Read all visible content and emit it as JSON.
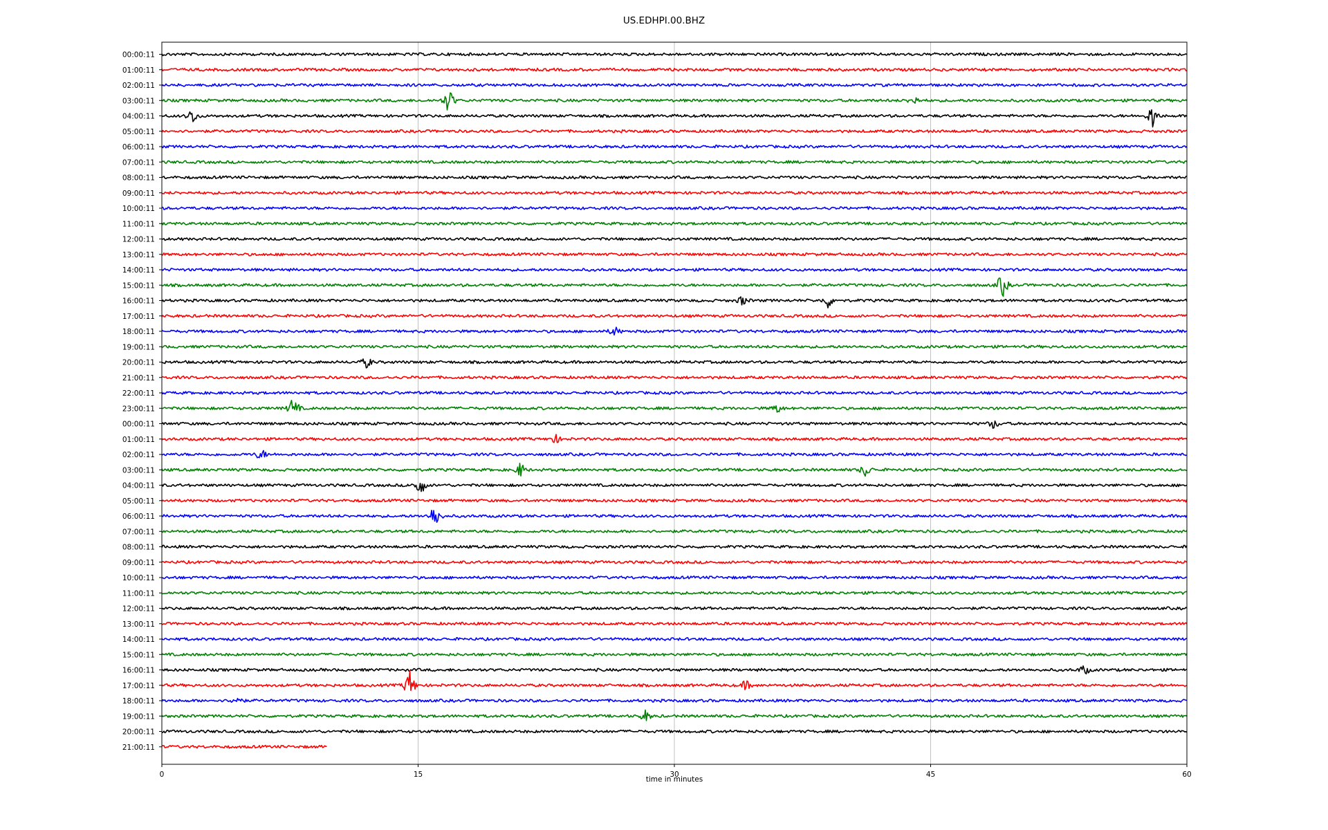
{
  "chart_data": {
    "type": "line",
    "title": "US.EDHPI.00.BHZ",
    "xlabel": "time in minutes",
    "ylabel": "",
    "xlim": [
      0,
      60
    ],
    "xticks": [
      "0",
      "15",
      "30",
      "45",
      "60"
    ],
    "grid": "vertical",
    "trace_colors": [
      "#000000",
      "#ff0000",
      "#0000ff",
      "#008000"
    ],
    "rows": [
      {
        "label": "00:00:11",
        "end_minute": 60
      },
      {
        "label": "01:00:11",
        "end_minute": 60
      },
      {
        "label": "02:00:11",
        "end_minute": 60
      },
      {
        "label": "03:00:11",
        "end_minute": 60
      },
      {
        "label": "04:00:11",
        "end_minute": 60
      },
      {
        "label": "05:00:11",
        "end_minute": 60
      },
      {
        "label": "06:00:11",
        "end_minute": 60
      },
      {
        "label": "07:00:11",
        "end_minute": 60
      },
      {
        "label": "08:00:11",
        "end_minute": 60
      },
      {
        "label": "09:00:11",
        "end_minute": 60
      },
      {
        "label": "10:00:11",
        "end_minute": 60
      },
      {
        "label": "11:00:11",
        "end_minute": 60
      },
      {
        "label": "12:00:11",
        "end_minute": 60
      },
      {
        "label": "13:00:11",
        "end_minute": 60
      },
      {
        "label": "14:00:11",
        "end_minute": 60
      },
      {
        "label": "15:00:11",
        "end_minute": 60
      },
      {
        "label": "16:00:11",
        "end_minute": 60
      },
      {
        "label": "17:00:11",
        "end_minute": 60
      },
      {
        "label": "18:00:11",
        "end_minute": 60
      },
      {
        "label": "19:00:11",
        "end_minute": 60
      },
      {
        "label": "20:00:11",
        "end_minute": 60
      },
      {
        "label": "21:00:11",
        "end_minute": 60
      },
      {
        "label": "22:00:11",
        "end_minute": 60
      },
      {
        "label": "23:00:11",
        "end_minute": 60
      },
      {
        "label": "00:00:11",
        "end_minute": 60
      },
      {
        "label": "01:00:11",
        "end_minute": 60
      },
      {
        "label": "02:00:11",
        "end_minute": 60
      },
      {
        "label": "03:00:11",
        "end_minute": 60
      },
      {
        "label": "04:00:11",
        "end_minute": 60
      },
      {
        "label": "05:00:11",
        "end_minute": 60
      },
      {
        "label": "06:00:11",
        "end_minute": 60
      },
      {
        "label": "07:00:11",
        "end_minute": 60
      },
      {
        "label": "08:00:11",
        "end_minute": 60
      },
      {
        "label": "09:00:11",
        "end_minute": 60
      },
      {
        "label": "10:00:11",
        "end_minute": 60
      },
      {
        "label": "11:00:11",
        "end_minute": 60
      },
      {
        "label": "12:00:11",
        "end_minute": 60
      },
      {
        "label": "13:00:11",
        "end_minute": 60
      },
      {
        "label": "14:00:11",
        "end_minute": 60
      },
      {
        "label": "15:00:11",
        "end_minute": 60
      },
      {
        "label": "16:00:11",
        "end_minute": 60
      },
      {
        "label": "17:00:11",
        "end_minute": 60
      },
      {
        "label": "18:00:11",
        "end_minute": 60
      },
      {
        "label": "19:00:11",
        "end_minute": 60
      },
      {
        "label": "20:00:11",
        "end_minute": 60
      },
      {
        "label": "21:00:11",
        "end_minute": 9.7
      }
    ],
    "events": [
      {
        "row": 3,
        "minute": 16.8,
        "amplitude": 1.6
      },
      {
        "row": 3,
        "minute": 44.0,
        "amplitude": 0.6
      },
      {
        "row": 4,
        "minute": 1.8,
        "amplitude": 1.0
      },
      {
        "row": 4,
        "minute": 58.0,
        "amplitude": 1.6
      },
      {
        "row": 15,
        "minute": 49.2,
        "amplitude": 1.6
      },
      {
        "row": 16,
        "minute": 34.0,
        "amplitude": 0.6
      },
      {
        "row": 16,
        "minute": 39.0,
        "amplitude": 0.9
      },
      {
        "row": 18,
        "minute": 26.5,
        "amplitude": 0.6
      },
      {
        "row": 20,
        "minute": 12.0,
        "amplitude": 0.7
      },
      {
        "row": 23,
        "minute": 7.7,
        "amplitude": 1.4
      },
      {
        "row": 23,
        "minute": 36.0,
        "amplitude": 0.6
      },
      {
        "row": 24,
        "minute": 48.7,
        "amplitude": 0.6
      },
      {
        "row": 25,
        "minute": 23.0,
        "amplitude": 0.6
      },
      {
        "row": 26,
        "minute": 5.8,
        "amplitude": 0.7
      },
      {
        "row": 27,
        "minute": 21.0,
        "amplitude": 0.9
      },
      {
        "row": 27,
        "minute": 41.2,
        "amplitude": 0.9
      },
      {
        "row": 28,
        "minute": 15.1,
        "amplitude": 1.4
      },
      {
        "row": 30,
        "minute": 16.0,
        "amplitude": 1.8
      },
      {
        "row": 40,
        "minute": 54.0,
        "amplitude": 0.6
      },
      {
        "row": 41,
        "minute": 14.5,
        "amplitude": 2.0
      },
      {
        "row": 41,
        "minute": 34.2,
        "amplitude": 0.6
      },
      {
        "row": 42,
        "minute": 4.4,
        "amplitude": 0.6
      },
      {
        "row": 43,
        "minute": 28.3,
        "amplitude": 0.7
      }
    ]
  }
}
